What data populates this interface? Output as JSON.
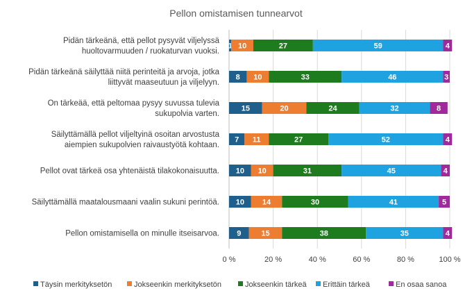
{
  "chart_data": {
    "type": "bar",
    "orientation": "horizontal-stacked-100",
    "title": "Pellon omistamisen tunnearvot",
    "categories": [
      [
        "Pidän tärkeänä, että pellot pysyvät viljelyssä",
        "huoltovarmuuden / ruokaturvan vuoksi."
      ],
      [
        "Pidän tärkeänä säilyttää niitä perinteitä ja arvoja, jotka",
        "liittyvät maaseutuun ja viljelyyn."
      ],
      [
        "On tärkeää, että peltomaa pysyy suvussa tulevia",
        "sukupolvia varten."
      ],
      [
        "Säilyttämällä pellot viljeltyinä osoitan arvostusta",
        "aiempien sukupolvien raivaustyötä kohtaan."
      ],
      [
        "Pellot ovat tärkeä osa yhtenäistä tilakokonaisuutta."
      ],
      [
        "Säilyttämällä maatalousmaani vaalin sukuni perintöä."
      ],
      [
        "Pellon omistamisella on minulle itseisarvoa."
      ]
    ],
    "series": [
      {
        "name": "Täysin merkityksetön",
        "color": "#1f5f8b",
        "values": [
          1,
          8,
          15,
          7,
          10,
          10,
          9
        ]
      },
      {
        "name": "Jokseenkin merkityksetön",
        "color": "#ed7d31",
        "values": [
          10,
          10,
          20,
          11,
          10,
          14,
          15
        ]
      },
      {
        "name": "Jokseenkin tärkeä",
        "color": "#1e7b1e",
        "values": [
          27,
          33,
          24,
          27,
          31,
          30,
          38
        ]
      },
      {
        "name": "Erittäin tärkeä",
        "color": "#1fa3e0",
        "values": [
          59,
          46,
          32,
          52,
          45,
          41,
          35
        ]
      },
      {
        "name": "En osaa sanoa",
        "color": "#a0299b",
        "values": [
          4,
          3,
          8,
          4,
          4,
          5,
          4
        ]
      }
    ],
    "xticks": [
      "0 %",
      "20 %",
      "40 %",
      "60 %",
      "80 %",
      "100 %"
    ],
    "xlim": [
      0,
      100
    ],
    "grid": true,
    "legend": "bottom"
  }
}
